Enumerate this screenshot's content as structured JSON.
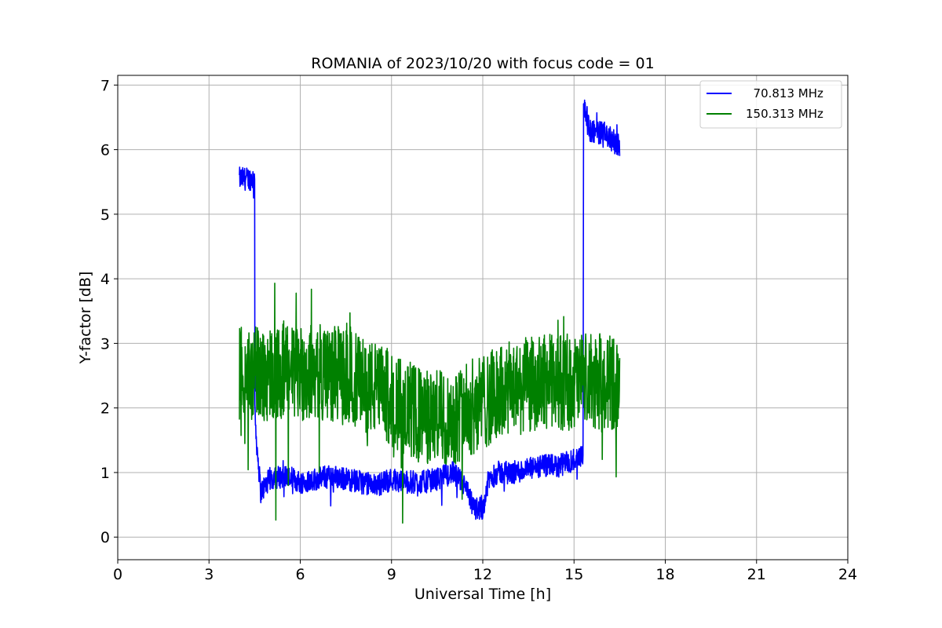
{
  "chart_data": {
    "type": "line",
    "title": "ROMANIA of 2023/10/20 with focus code = 01",
    "xlabel": "Universal Time [h]",
    "ylabel": "Y-factor [dB]",
    "xlim": [
      0,
      24
    ],
    "ylim": [
      -0.35,
      7.15
    ],
    "xticks": [
      0,
      3,
      6,
      9,
      12,
      15,
      18,
      21,
      24
    ],
    "yticks": [
      0,
      1,
      2,
      3,
      4,
      5,
      6,
      7
    ],
    "grid": true,
    "legend_position": "top-right",
    "series": [
      {
        "name": "  70.813 MHz",
        "color": "#0000ff",
        "noise": 0.18,
        "x": [
          4.0,
          4.5,
          4.51,
          4.7,
          5.0,
          5.5,
          6.0,
          6.5,
          7.0,
          7.5,
          8.0,
          8.5,
          9.0,
          9.5,
          10.0,
          10.5,
          11.0,
          11.4,
          11.7,
          12.0,
          12.2,
          12.5,
          13.0,
          13.5,
          14.0,
          14.5,
          15.0,
          15.3,
          15.31,
          15.5,
          16.0,
          16.5
        ],
        "y": [
          5.55,
          5.55,
          1.8,
          0.7,
          0.9,
          0.95,
          0.85,
          0.9,
          0.95,
          0.9,
          0.85,
          0.8,
          0.9,
          0.85,
          0.85,
          0.9,
          1.0,
          0.8,
          0.45,
          0.45,
          0.9,
          1.0,
          1.0,
          1.05,
          1.1,
          1.1,
          1.2,
          1.3,
          6.7,
          6.3,
          6.25,
          6.05
        ]
      },
      {
        "name": "150.313 MHz",
        "color": "#008000",
        "noise": 0.75,
        "x": [
          4.0,
          5.0,
          6.0,
          7.0,
          8.0,
          9.0,
          10.0,
          11.0,
          12.0,
          13.0,
          14.0,
          15.0,
          16.0,
          16.5
        ],
        "y": [
          2.5,
          2.55,
          2.55,
          2.55,
          2.4,
          2.15,
          1.85,
          1.85,
          2.1,
          2.3,
          2.4,
          2.4,
          2.4,
          2.4
        ]
      }
    ]
  }
}
